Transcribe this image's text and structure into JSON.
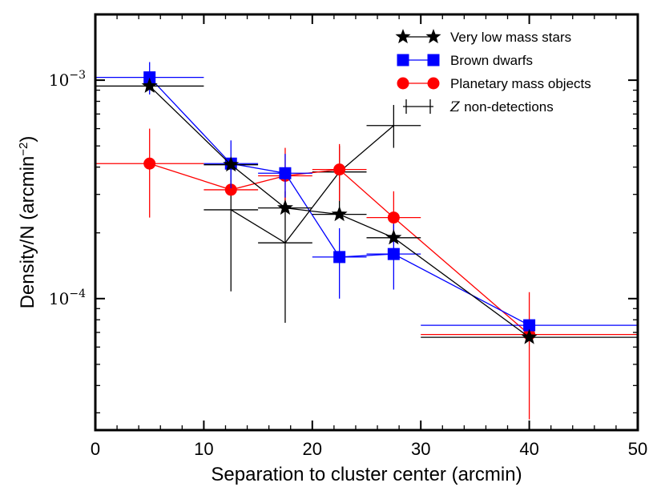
{
  "chart_data": {
    "type": "scatter",
    "title": "",
    "xlabel": "Separation to cluster center (arcmin)",
    "ylabel": "Density/N (arcmin",
    "ylabel_sup": "−2",
    "ylabel_close": ")",
    "xlim": [
      0,
      50
    ],
    "ylim": [
      2.5e-05,
      0.002
    ],
    "yscale": "log",
    "grid": false,
    "legend_position": "top-right",
    "x_ticks": [
      0,
      10,
      20,
      30,
      40,
      50
    ],
    "x_tick_labels": [
      "0",
      "10",
      "20",
      "30",
      "40",
      "50"
    ],
    "y_major_ticks": [
      {
        "value": 0.001,
        "base": "10",
        "exp": "−3"
      },
      {
        "value": 0.0001,
        "base": "10",
        "exp": "−4"
      }
    ],
    "series": [
      {
        "name": "Very low mass stars",
        "color": "#000000",
        "marker": "star",
        "connected": true,
        "points": [
          {
            "x": 5,
            "y": 0.00094,
            "xlo": 0,
            "xhi": 10,
            "ylo": 0.00094,
            "yhi": 0.00094
          },
          {
            "x": 12.5,
            "y": 0.00041,
            "xlo": 10,
            "xhi": 15,
            "ylo": 0.00041,
            "yhi": 0.00041
          },
          {
            "x": 17.5,
            "y": 0.00026,
            "xlo": 15,
            "xhi": 20,
            "ylo": 0.00026,
            "yhi": 0.00026
          },
          {
            "x": 22.5,
            "y": 0.000243,
            "xlo": 20,
            "xhi": 25,
            "ylo": 0.000243,
            "yhi": 0.000243
          },
          {
            "x": 27.5,
            "y": 0.00019,
            "xlo": 25,
            "xhi": 30,
            "ylo": 0.00019,
            "yhi": 0.00019
          },
          {
            "x": 40,
            "y": 6.65e-05,
            "xlo": 30,
            "xhi": 50,
            "ylo": 6.65e-05,
            "yhi": 6.65e-05
          }
        ]
      },
      {
        "name": "Brown dwarfs",
        "color": "#0000ff",
        "marker": "square",
        "connected": true,
        "points": [
          {
            "x": 5,
            "y": 0.00103,
            "xlo": 0,
            "xhi": 10,
            "ylo": 0.00086,
            "yhi": 0.00121
          },
          {
            "x": 12.5,
            "y": 0.000415,
            "xlo": 10,
            "xhi": 15,
            "ylo": 0.00032,
            "yhi": 0.00053
          },
          {
            "x": 17.5,
            "y": 0.000375,
            "xlo": 15,
            "xhi": 20,
            "ylo": 0.00029,
            "yhi": 0.00046
          },
          {
            "x": 22.5,
            "y": 0.000155,
            "xlo": 20,
            "xhi": 25,
            "ylo": 0.0001,
            "yhi": 0.00021
          },
          {
            "x": 27.5,
            "y": 0.00016,
            "xlo": 25,
            "xhi": 30,
            "ylo": 0.00011,
            "yhi": 0.00022
          },
          {
            "x": 40,
            "y": 7.55e-05,
            "xlo": 30,
            "xhi": 50,
            "ylo": 7.55e-05,
            "yhi": 7.55e-05
          }
        ]
      },
      {
        "name": "Planetary mass objects",
        "color": "#ff0000",
        "marker": "circle",
        "connected": true,
        "points": [
          {
            "x": 5,
            "y": 0.000415,
            "xlo": 0,
            "xhi": 10,
            "ylo": 0.000235,
            "yhi": 0.0006
          },
          {
            "x": 12.5,
            "y": 0.000315,
            "xlo": 10,
            "xhi": 15,
            "ylo": 0.000315,
            "yhi": 0.000315
          },
          {
            "x": 17.5,
            "y": 0.000365,
            "xlo": 15,
            "xhi": 20,
            "ylo": 0.00026,
            "yhi": 0.00049
          },
          {
            "x": 22.5,
            "y": 0.00039,
            "xlo": 20,
            "xhi": 25,
            "ylo": 0.00028,
            "yhi": 0.00051
          },
          {
            "x": 27.5,
            "y": 0.000235,
            "xlo": 25,
            "xhi": 30,
            "ylo": 0.00018,
            "yhi": 0.00031
          },
          {
            "x": 40,
            "y": 6.85e-05,
            "xlo": 30,
            "xhi": 50,
            "ylo": 2.8e-05,
            "yhi": 0.000107
          }
        ]
      },
      {
        "name": "non-detections",
        "legend_prefix": "Z",
        "color": "#000000",
        "marker": "none",
        "connected": true,
        "points": [
          {
            "x": 12.5,
            "y": 0.000255,
            "xlo": 10,
            "xhi": 15,
            "ylo": 0.000108,
            "yhi": 0.00042
          },
          {
            "x": 17.5,
            "y": 0.00018,
            "xlo": 15,
            "xhi": 20,
            "ylo": 7.75e-05,
            "yhi": 0.00031
          },
          {
            "x": 22.5,
            "y": 0.00038,
            "xlo": 20,
            "xhi": 25,
            "ylo": 0.00026,
            "yhi": 0.0005
          },
          {
            "x": 27.5,
            "y": 0.00062,
            "xlo": 25,
            "xhi": 30,
            "ylo": 0.00049,
            "yhi": 0.00077
          }
        ]
      }
    ]
  }
}
